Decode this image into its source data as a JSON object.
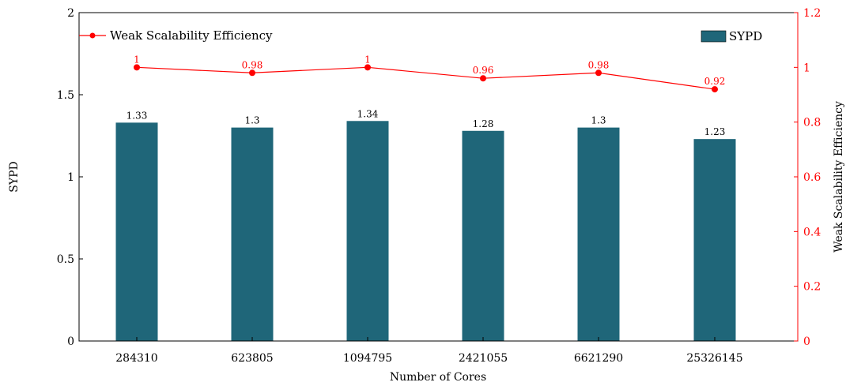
{
  "chart_data": {
    "type": "bar",
    "categories": [
      "284310",
      "623805",
      "1094795",
      "2421055",
      "6621290",
      "25326145"
    ],
    "xlabel": "Number of Cores",
    "ylabel": "SYPD",
    "y2label": "Weak Scalability Efficiency",
    "ylim": [
      0,
      2
    ],
    "y2lim": [
      0,
      1.2
    ],
    "yticks": [
      "0",
      "0.5",
      "1",
      "1.5",
      "2"
    ],
    "y2ticks": [
      "0",
      "0.2",
      "0.4",
      "0.6",
      "0.8",
      "1",
      "1.2"
    ],
    "grid": false,
    "series": [
      {
        "name": "SYPD",
        "type": "bar",
        "axis": "left",
        "color": "#1f6679",
        "values": [
          1.33,
          1.3,
          1.34,
          1.28,
          1.3,
          1.23
        ],
        "labels": [
          "1.33",
          "1.3",
          "1.34",
          "1.28",
          "1.3",
          "1.23"
        ]
      },
      {
        "name": "Weak Scalability Efficiency",
        "type": "line",
        "axis": "right",
        "color": "#ff0000",
        "values": [
          1,
          0.98,
          1,
          0.96,
          0.98,
          0.92
        ],
        "labels": [
          "1",
          "0.98",
          "1",
          "0.96",
          "0.98",
          "0.92"
        ]
      }
    ],
    "legend": {
      "line_entry": "Weak Scalability Efficiency",
      "bar_entry": "SYPD",
      "placement": "top"
    }
  }
}
